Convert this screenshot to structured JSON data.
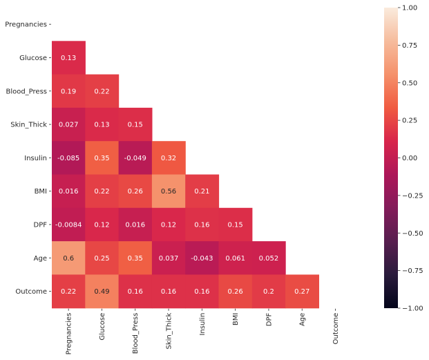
{
  "chart_data": {
    "type": "heatmap",
    "variables": [
      "Pregnancies",
      "Glucose",
      "Blood_Press",
      "Skin_Thick",
      "Insulin",
      "BMI",
      "DPF",
      "Age",
      "Outcome"
    ],
    "mask": "upper-triangle-including-diagonal",
    "cells": [
      {
        "row": "Glucose",
        "col": "Pregnancies",
        "value": 0.13,
        "label": "0.13"
      },
      {
        "row": "Blood_Press",
        "col": "Pregnancies",
        "value": 0.19,
        "label": "0.19"
      },
      {
        "row": "Blood_Press",
        "col": "Glucose",
        "value": 0.22,
        "label": "0.22"
      },
      {
        "row": "Skin_Thick",
        "col": "Pregnancies",
        "value": 0.027,
        "label": "0.027"
      },
      {
        "row": "Skin_Thick",
        "col": "Glucose",
        "value": 0.13,
        "label": "0.13"
      },
      {
        "row": "Skin_Thick",
        "col": "Blood_Press",
        "value": 0.15,
        "label": "0.15"
      },
      {
        "row": "Insulin",
        "col": "Pregnancies",
        "value": -0.085,
        "label": "-0.085"
      },
      {
        "row": "Insulin",
        "col": "Glucose",
        "value": 0.35,
        "label": "0.35"
      },
      {
        "row": "Insulin",
        "col": "Blood_Press",
        "value": -0.049,
        "label": "-0.049"
      },
      {
        "row": "Insulin",
        "col": "Skin_Thick",
        "value": 0.32,
        "label": "0.32"
      },
      {
        "row": "BMI",
        "col": "Pregnancies",
        "value": 0.016,
        "label": "0.016"
      },
      {
        "row": "BMI",
        "col": "Glucose",
        "value": 0.22,
        "label": "0.22"
      },
      {
        "row": "BMI",
        "col": "Blood_Press",
        "value": 0.26,
        "label": "0.26"
      },
      {
        "row": "BMI",
        "col": "Skin_Thick",
        "value": 0.56,
        "label": "0.56"
      },
      {
        "row": "BMI",
        "col": "Insulin",
        "value": 0.21,
        "label": "0.21"
      },
      {
        "row": "DPF",
        "col": "Pregnancies",
        "value": -0.0084,
        "label": "-0.0084"
      },
      {
        "row": "DPF",
        "col": "Glucose",
        "value": 0.12,
        "label": "0.12"
      },
      {
        "row": "DPF",
        "col": "Blood_Press",
        "value": 0.016,
        "label": "0.016"
      },
      {
        "row": "DPF",
        "col": "Skin_Thick",
        "value": 0.12,
        "label": "0.12"
      },
      {
        "row": "DPF",
        "col": "Insulin",
        "value": 0.16,
        "label": "0.16"
      },
      {
        "row": "DPF",
        "col": "BMI",
        "value": 0.15,
        "label": "0.15"
      },
      {
        "row": "Age",
        "col": "Pregnancies",
        "value": 0.6,
        "label": "0.6"
      },
      {
        "row": "Age",
        "col": "Glucose",
        "value": 0.25,
        "label": "0.25"
      },
      {
        "row": "Age",
        "col": "Blood_Press",
        "value": 0.35,
        "label": "0.35"
      },
      {
        "row": "Age",
        "col": "Skin_Thick",
        "value": 0.037,
        "label": "0.037"
      },
      {
        "row": "Age",
        "col": "Insulin",
        "value": -0.043,
        "label": "-0.043"
      },
      {
        "row": "Age",
        "col": "BMI",
        "value": 0.061,
        "label": "0.061"
      },
      {
        "row": "Age",
        "col": "DPF",
        "value": 0.052,
        "label": "0.052"
      },
      {
        "row": "Outcome",
        "col": "Pregnancies",
        "value": 0.22,
        "label": "0.22"
      },
      {
        "row": "Outcome",
        "col": "Glucose",
        "value": 0.49,
        "label": "0.49"
      },
      {
        "row": "Outcome",
        "col": "Blood_Press",
        "value": 0.16,
        "label": "0.16"
      },
      {
        "row": "Outcome",
        "col": "Skin_Thick",
        "value": 0.16,
        "label": "0.16"
      },
      {
        "row": "Outcome",
        "col": "Insulin",
        "value": 0.16,
        "label": "0.16"
      },
      {
        "row": "Outcome",
        "col": "BMI",
        "value": 0.26,
        "label": "0.26"
      },
      {
        "row": "Outcome",
        "col": "DPF",
        "value": 0.2,
        "label": "0.2"
      },
      {
        "row": "Outcome",
        "col": "Age",
        "value": 0.27,
        "label": "0.27"
      }
    ],
    "colorbar": {
      "range": [
        -1.0,
        1.0
      ],
      "ticks": [
        -1.0,
        -0.75,
        -0.5,
        -0.25,
        0.0,
        0.25,
        0.5,
        0.75,
        1.0
      ],
      "tick_labels": [
        "−1.00",
        "−0.75",
        "−0.50",
        "−0.25",
        "0.00",
        "0.25",
        "0.50",
        "0.75",
        "1.00"
      ],
      "colormap": "rocket",
      "colormap_stops": [
        "#03051a",
        "#2a1b3c",
        "#571e4f",
        "#831c5a",
        "#ad1759",
        "#d8254b",
        "#f05b41",
        "#f5916b",
        "#f6bc9d",
        "#faebdd"
      ]
    },
    "title": "",
    "xlabel": "",
    "ylabel": "",
    "x_tick_rotation": "vertical",
    "grid": false,
    "legend": "colorbar-right"
  }
}
